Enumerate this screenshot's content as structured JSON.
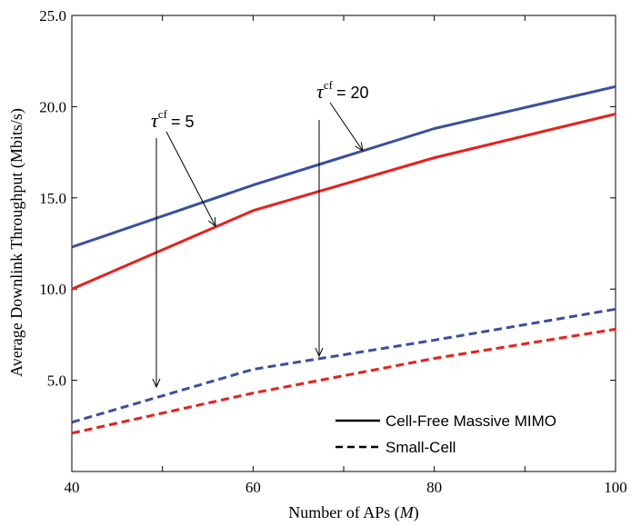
{
  "chart_data": {
    "type": "line",
    "xlabel": "Number of APs (",
    "xlabel_var": "M",
    "xlabel_end": ")",
    "ylabel": "Average Downlink Throughput (Mbits/s)",
    "xlim": [
      40,
      100
    ],
    "ylim": [
      0,
      25
    ],
    "x_ticks": [
      40,
      60,
      80,
      100
    ],
    "x_tick_labels": [
      "40",
      "60",
      "80",
      "100"
    ],
    "y_ticks": [
      5,
      10,
      15,
      20,
      25
    ],
    "y_tick_labels": [
      "5.0",
      "10.0",
      "15.0",
      "20.0",
      "25.0"
    ],
    "x": [
      40,
      60,
      80,
      100
    ],
    "series": [
      {
        "group": "cell-free",
        "tau": 20,
        "style": "solid",
        "color": "#3a4fa0",
        "values": [
          12.3,
          15.7,
          18.8,
          21.1
        ]
      },
      {
        "group": "cell-free",
        "tau": 5,
        "style": "solid",
        "color": "#e8201c",
        "values": [
          10.0,
          14.3,
          17.2,
          19.6
        ]
      },
      {
        "group": "small-cell",
        "tau": 20,
        "style": "dashed",
        "color": "#3a4fa0",
        "values": [
          2.7,
          5.6,
          7.2,
          8.9
        ]
      },
      {
        "group": "small-cell",
        "tau": 5,
        "style": "dashed",
        "color": "#e8201c",
        "values": [
          2.1,
          4.3,
          6.2,
          7.8
        ]
      }
    ],
    "legend": {
      "position": "bottom-right",
      "entries": [
        {
          "label": "Cell-Free Massive MIMO",
          "style": "solid"
        },
        {
          "label": "Small-Cell",
          "style": "dashed"
        }
      ]
    },
    "annotations": [
      {
        "symbol": "τ",
        "sup": "cf",
        "text": "= 5"
      },
      {
        "symbol": "τ",
        "sup": "cf",
        "text": "= 20"
      }
    ],
    "grid": false
  }
}
